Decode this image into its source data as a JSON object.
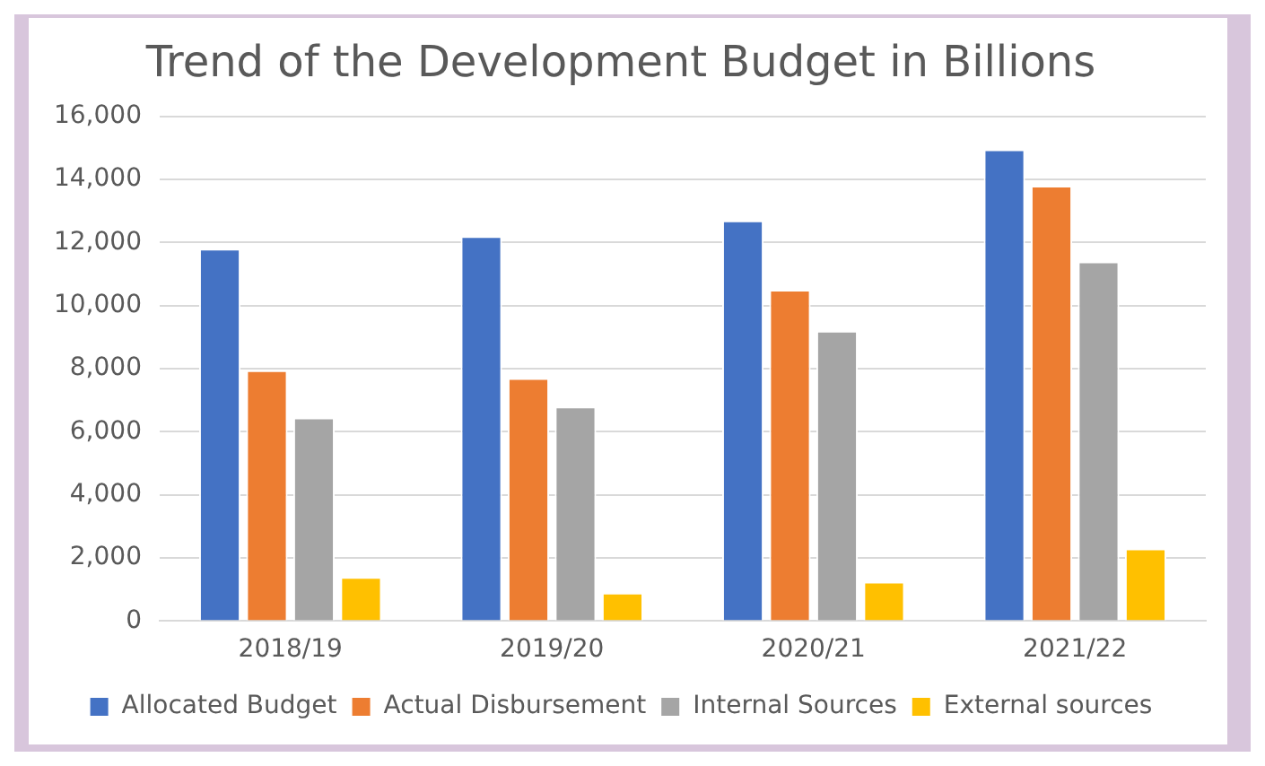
{
  "chart_data": {
    "type": "bar",
    "title": "Trend of the Development Budget in Billions",
    "categories": [
      "2018/19",
      "2019/20",
      "2020/21",
      "2021/22"
    ],
    "series": [
      {
        "name": "Allocated Budget",
        "color": "#4472c4",
        "values": [
          11800,
          12200,
          12700,
          14950
        ]
      },
      {
        "name": "Actual Disbursement",
        "color": "#ed7d31",
        "values": [
          7950,
          7700,
          10500,
          13800
        ]
      },
      {
        "name": "Internal Sources",
        "color": "#a5a5a5",
        "values": [
          6450,
          6800,
          9200,
          11400
        ]
      },
      {
        "name": "External sources",
        "color": "#ffc000",
        "values": [
          1400,
          900,
          1250,
          2300
        ]
      }
    ],
    "ylim": [
      0,
      16000
    ],
    "yticks": [
      0,
      {
        "value": 2000,
        "label": "2,000"
      },
      {
        "value": 4000,
        "label": "4,000"
      },
      {
        "value": 6000,
        "label": "6,000"
      },
      {
        "value": 8000,
        "label": "8,000"
      },
      {
        "value": 10000,
        "label": "10,000"
      },
      {
        "value": 12000,
        "label": "12,000"
      },
      {
        "value": 14000,
        "label": "14,000"
      },
      {
        "value": 16000,
        "label": "16,000"
      }
    ],
    "grid": "y",
    "legend": "bottom"
  }
}
